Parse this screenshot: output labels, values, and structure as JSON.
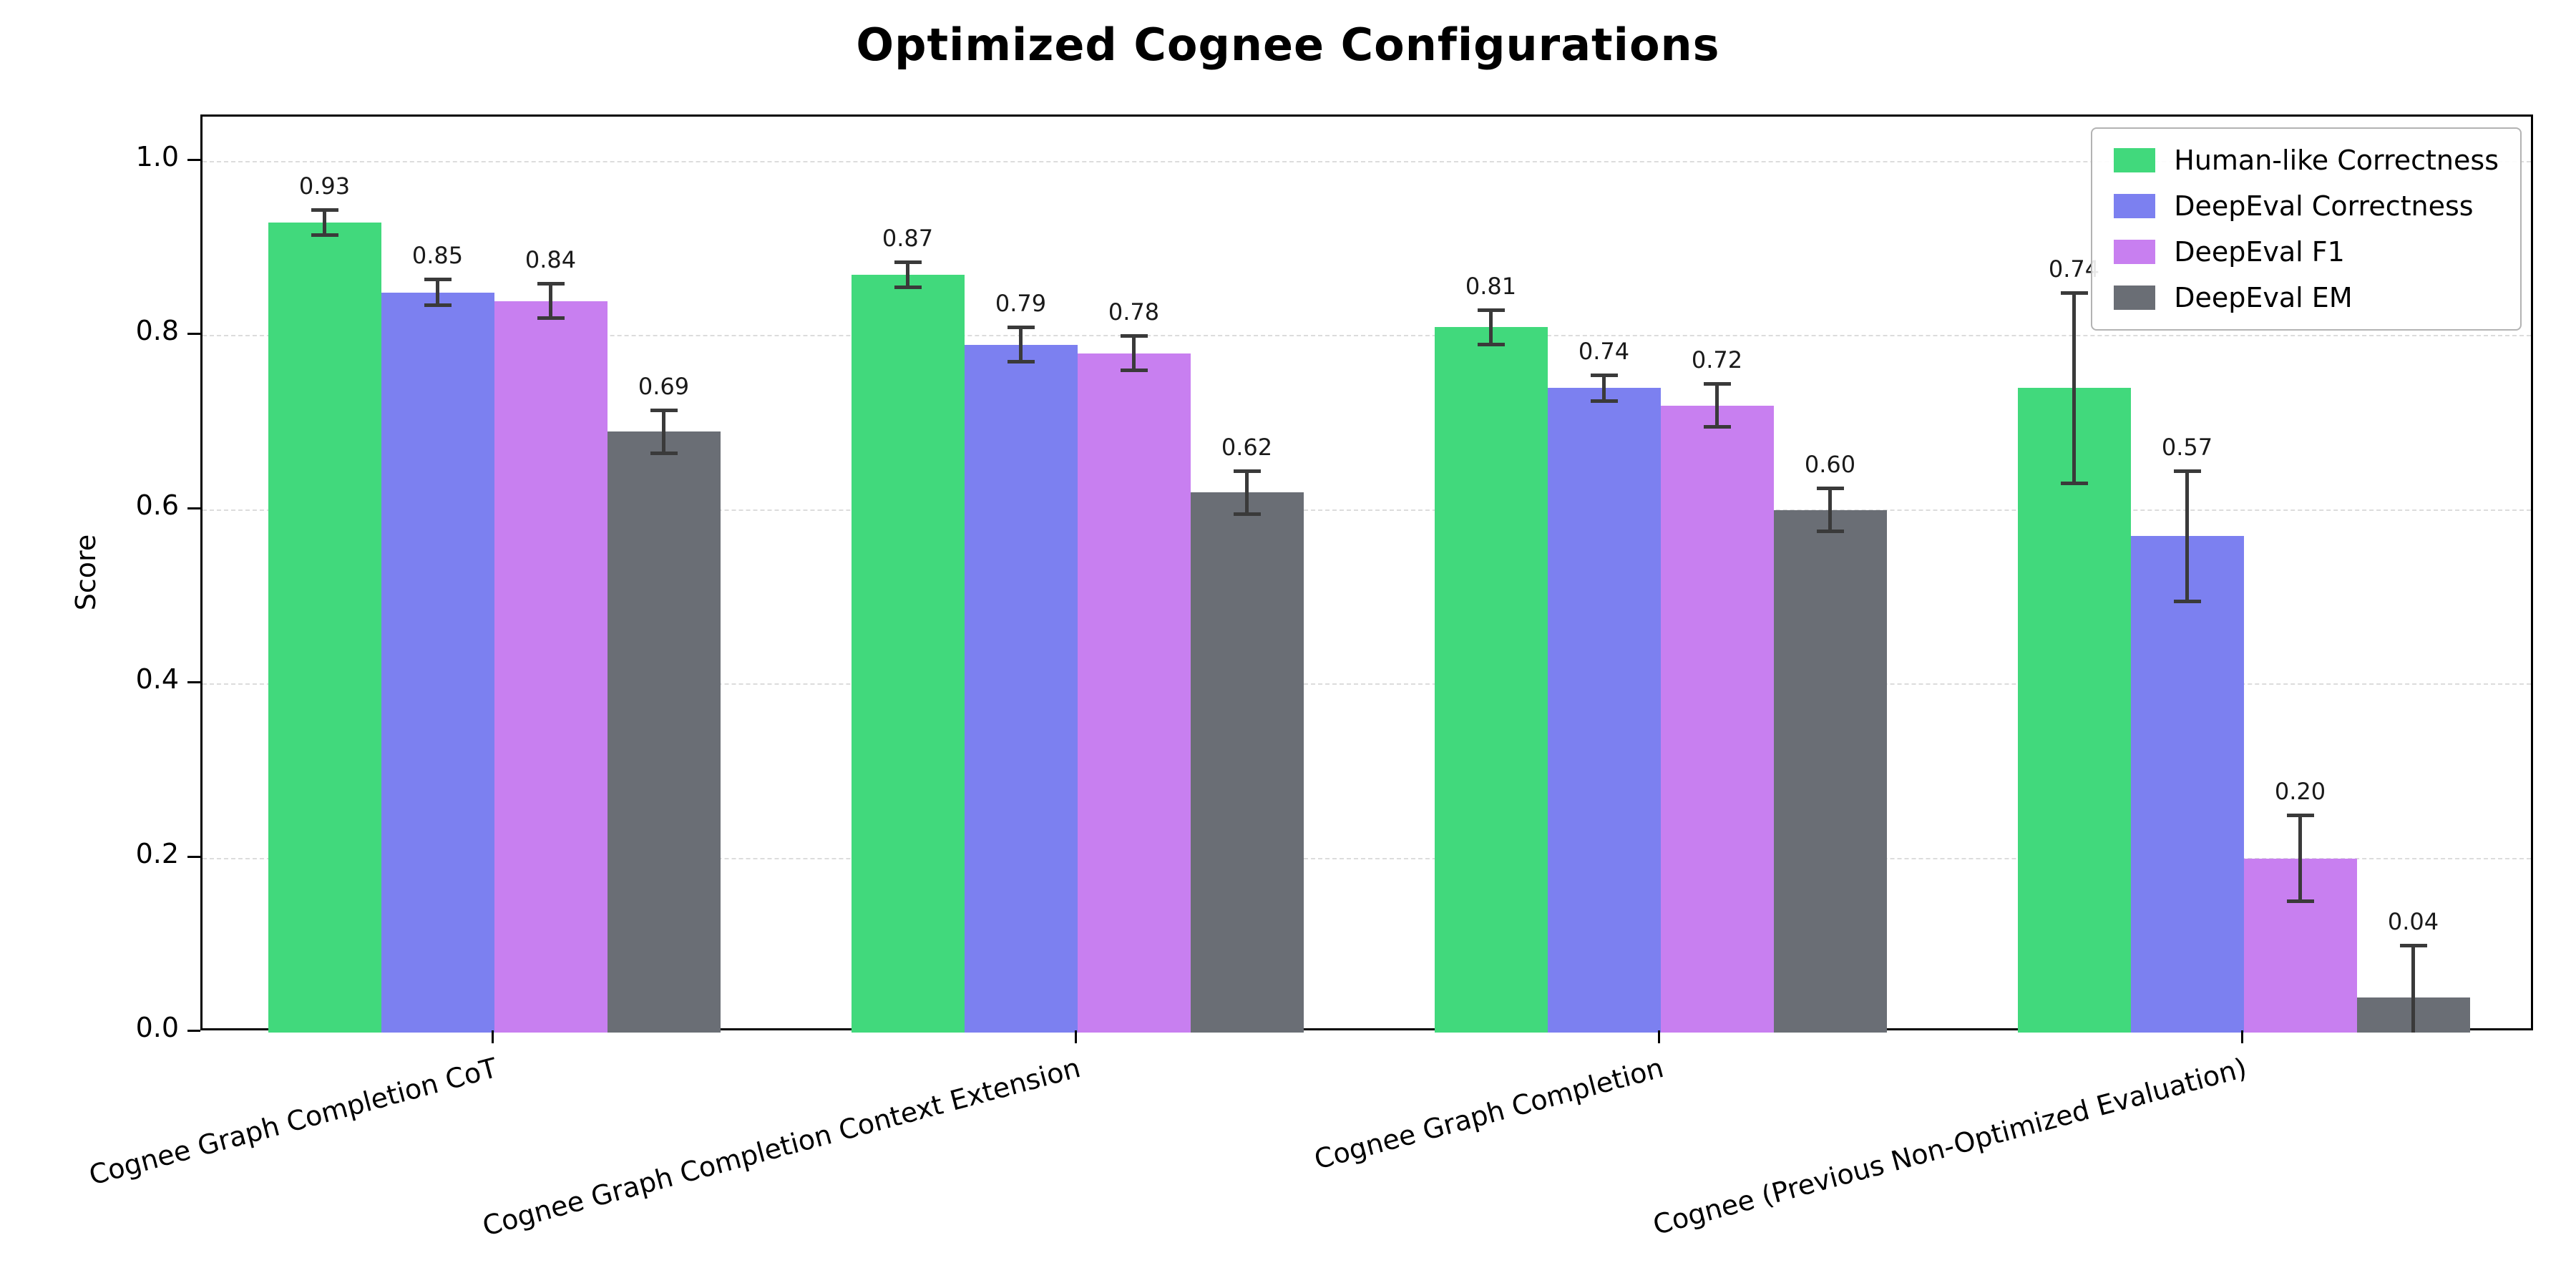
{
  "chart_data": {
    "type": "bar",
    "title": "Optimized Cognee Configurations",
    "ylabel": "Score",
    "xlabel": "",
    "ylim": [
      0,
      1.05
    ],
    "grid": "horizontal-dashed",
    "legend_position": "upper-right",
    "ytick_values": [
      0.0,
      0.2,
      0.4,
      0.6,
      0.8,
      1.0
    ],
    "ytick_labels": [
      "0.0",
      "0.2",
      "0.4",
      "0.6",
      "0.8",
      "1.0"
    ],
    "categories": [
      "Cognee Graph Completion CoT",
      "Cognee Graph Completion Context Extension",
      "Cognee Graph Completion",
      "Cognee (Previous Non-Optimized Evaluation)"
    ],
    "series": [
      {
        "name": "Human-like Correctness",
        "color": "#41d97c",
        "values": [
          0.93,
          0.87,
          0.81,
          0.74
        ],
        "errors": [
          0.015,
          0.015,
          0.02,
          0.11
        ],
        "labels": [
          "0.93",
          "0.87",
          "0.81",
          "0.74"
        ]
      },
      {
        "name": "DeepEval Correctness",
        "color": "#7c80f0",
        "values": [
          0.85,
          0.79,
          0.74,
          0.57
        ],
        "errors": [
          0.015,
          0.02,
          0.015,
          0.075
        ],
        "labels": [
          "0.85",
          "0.79",
          "0.74",
          "0.57"
        ]
      },
      {
        "name": "DeepEval F1",
        "color": "#c87ff0",
        "values": [
          0.84,
          0.78,
          0.72,
          0.2
        ],
        "errors": [
          0.02,
          0.02,
          0.025,
          0.05
        ],
        "labels": [
          "0.84",
          "0.78",
          "0.72",
          "0.20"
        ]
      },
      {
        "name": "DeepEval EM",
        "color": "#6a6e75",
        "values": [
          0.69,
          0.62,
          0.6,
          0.04
        ],
        "errors": [
          0.025,
          0.025,
          0.025,
          0.06
        ],
        "labels": [
          "0.69",
          "0.62",
          "0.60",
          "0.04"
        ]
      }
    ],
    "colors": {
      "error_bar": "#3a3a3a",
      "grid": "#dcdcdc",
      "axis": "#000000",
      "background": "#ffffff"
    }
  }
}
